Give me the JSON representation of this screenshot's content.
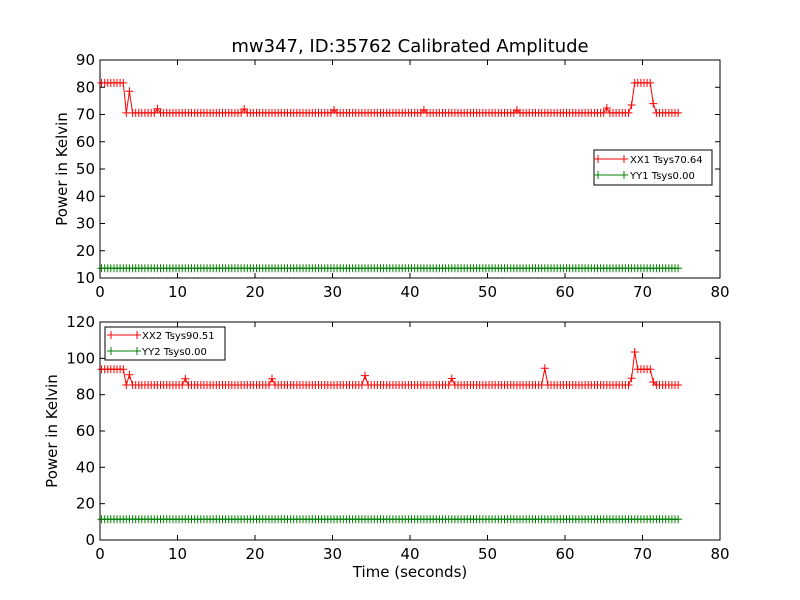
{
  "figure": {
    "title": "mw347, ID:35762 Calibrated Amplitude",
    "xlabel": "Time (seconds)"
  },
  "chart_data": [
    {
      "type": "line",
      "title": "mw347, ID:35762 Calibrated Amplitude",
      "xlabel": "",
      "ylabel": "Power in Kelvin",
      "xlim": [
        0,
        80
      ],
      "ylim": [
        10,
        90
      ],
      "xticks": [
        "0",
        "10",
        "20",
        "30",
        "40",
        "50",
        "60",
        "70",
        "80"
      ],
      "yticks": [
        "10",
        "20",
        "30",
        "40",
        "50",
        "60",
        "70",
        "80",
        "90"
      ],
      "legend_position": "center-right",
      "grid": false,
      "marker": "+",
      "series": [
        {
          "name": "XX1 Tsys70.64",
          "color": "#ff0000",
          "base": 70.6,
          "segments": [
            [
              0.2,
              3.3,
              81.6
            ],
            [
              68.8,
              71.0,
              81.6
            ]
          ],
          "transitions": [
            [
              3.6,
              78.5
            ],
            [
              68.5,
              73.5
            ],
            [
              71.4,
              74.0
            ]
          ],
          "spikes": [
            [
              7.3,
              72.1
            ],
            [
              18.6,
              72.0
            ],
            [
              30.3,
              71.7
            ],
            [
              41.6,
              71.7
            ],
            [
              53.8,
              71.6
            ],
            [
              65.2,
              72.4
            ]
          ]
        },
        {
          "name": "YY1 Tsys0.00",
          "color": "#008000",
          "base": 13.6,
          "segments": [],
          "transitions": [],
          "spikes": []
        }
      ]
    },
    {
      "type": "line",
      "title": "",
      "xlabel": "Time (seconds)",
      "ylabel": "Power in Kelvin",
      "xlim": [
        0,
        80
      ],
      "ylim": [
        0,
        120
      ],
      "xticks": [
        "0",
        "10",
        "20",
        "30",
        "40",
        "50",
        "60",
        "70",
        "80"
      ],
      "yticks": [
        "0",
        "20",
        "40",
        "60",
        "80",
        "100",
        "120"
      ],
      "legend_position": "top-left",
      "grid": false,
      "marker": "+",
      "series": [
        {
          "name": "XX2 Tsys90.51",
          "color": "#ff0000",
          "base": 85.3,
          "segments": [
            [
              0.2,
              3.3,
              94.0
            ],
            [
              69.4,
              71.0,
              94.0
            ]
          ],
          "transitions": [
            [
              3.6,
              91.0
            ],
            [
              68.7,
              89.0
            ],
            [
              71.4,
              87.0
            ]
          ],
          "spikes": [
            [
              10.9,
              88.8
            ],
            [
              22.2,
              88.8
            ],
            [
              34.0,
              90.5
            ],
            [
              45.3,
              88.9
            ],
            [
              57.3,
              94.5
            ],
            [
              69.1,
              103.5
            ]
          ]
        },
        {
          "name": "YY2 Tsys0.00",
          "color": "#008000",
          "base": 11.4,
          "segments": [],
          "transitions": [],
          "spikes": []
        }
      ]
    }
  ]
}
